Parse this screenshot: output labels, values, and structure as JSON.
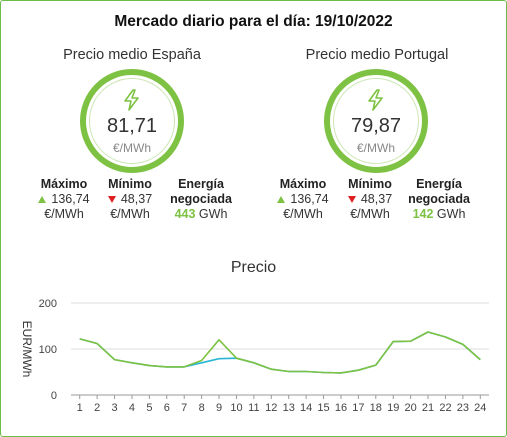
{
  "title": "Mercado diario para el día: 19/10/2022",
  "spain": {
    "heading": "Precio medio España",
    "value": "81,71",
    "unit": "€/MWh",
    "max_label": "Máximo",
    "max_value": "136,74",
    "max_unit": "€/MWh",
    "min_label": "Mínimo",
    "min_value": "48,37",
    "min_unit": "€/MWh",
    "energy_label_1": "Energía",
    "energy_label_2": "negociada",
    "energy_value": "443",
    "energy_unit": "GWh"
  },
  "portugal": {
    "heading": "Precio medio Portugal",
    "value": "79,87",
    "unit": "€/MWh",
    "max_label": "Máximo",
    "max_value": "136,74",
    "max_unit": "€/MWh",
    "min_label": "Mínimo",
    "min_value": "48,37",
    "min_unit": "€/MWh",
    "energy_label_1": "Energía",
    "energy_label_2": "negociada",
    "energy_value": "142",
    "energy_unit": "GWh"
  },
  "icons": {
    "gauge": "lightning-bolt-icon",
    "up": "triangle-up-icon",
    "down": "triangle-down-icon"
  },
  "colors": {
    "accent": "#7dc242",
    "spain": "#7dc242",
    "portugal": "#29b6d6",
    "down": "#e02020"
  },
  "chart_data": {
    "type": "line",
    "title": "Precio",
    "ylabel": "EUR/MWh",
    "xlabel": "",
    "ylim": [
      0,
      200
    ],
    "yticks": [
      0,
      100,
      200
    ],
    "x": [
      1,
      2,
      3,
      4,
      5,
      6,
      7,
      8,
      9,
      10,
      11,
      12,
      13,
      14,
      15,
      16,
      17,
      18,
      19,
      20,
      21,
      22,
      23,
      24
    ],
    "series": [
      {
        "color": "#29b6d6",
        "values": [
          122,
          112,
          77,
          70,
          64,
          61,
          61,
          70,
          79,
          80,
          70,
          56,
          51,
          51,
          49,
          48,
          54,
          65,
          116,
          117,
          137,
          126,
          110,
          77
        ]
      },
      {
        "color": "#7dc242",
        "values": [
          122,
          112,
          77,
          70,
          64,
          61,
          61,
          75,
          120,
          80,
          70,
          56,
          51,
          51,
          49,
          48,
          54,
          65,
          116,
          117,
          137,
          126,
          110,
          77
        ]
      }
    ],
    "grid": true
  }
}
